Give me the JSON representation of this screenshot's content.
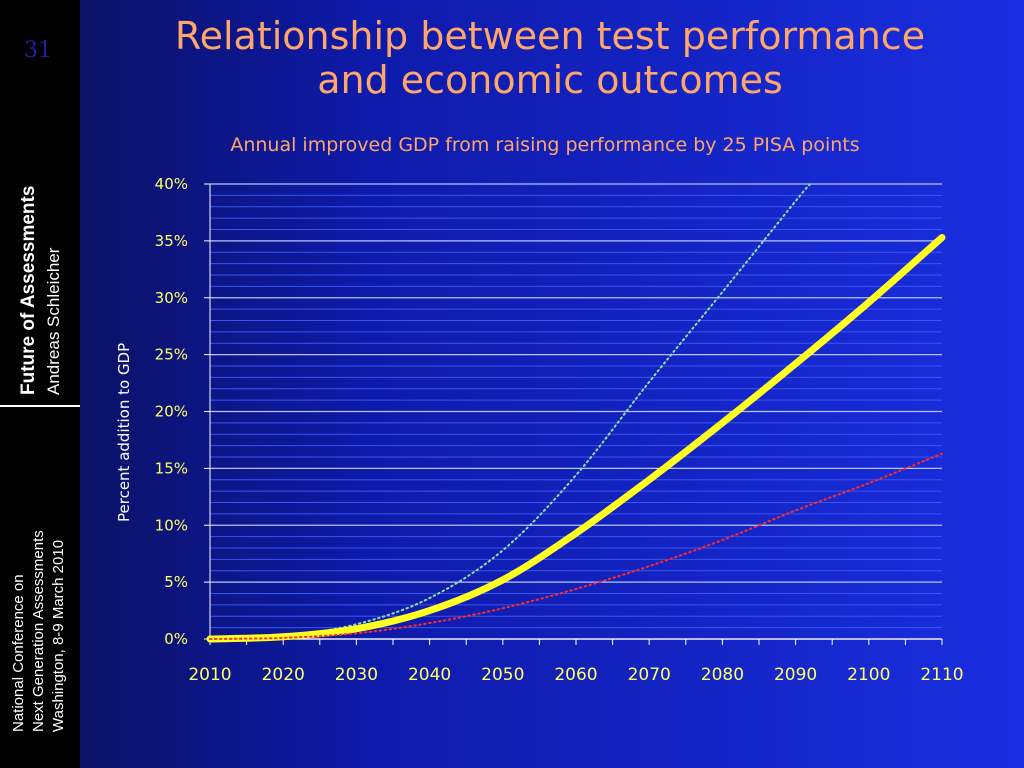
{
  "slide": {
    "number": "31",
    "title_line1": "Relationship between test performance",
    "title_line2": "and economic outcomes",
    "sidebar": {
      "heading": "Future of Assessments",
      "author": "Andreas Schleicher",
      "conference_line1": "National Conference on",
      "conference_line2": "Next Generation Assessments",
      "conference_line3": "Washington, 8-9 March 2010"
    }
  },
  "chart_data": {
    "type": "line",
    "title": "Annual improved GDP from raising performance by 25 PISA points",
    "xlabel": "",
    "ylabel": "Percent addition to GDP",
    "xlim": [
      2010,
      2110
    ],
    "ylim": [
      0,
      40
    ],
    "x_ticks": [
      "2010",
      "2020",
      "2030",
      "2040",
      "2050",
      "2060",
      "2070",
      "2080",
      "2090",
      "2100",
      "2110"
    ],
    "y_ticks": [
      "0%",
      "5%",
      "10%",
      "15%",
      "20%",
      "25%",
      "30%",
      "35%",
      "40%"
    ],
    "grid": true,
    "series": [
      {
        "style": "dotted",
        "color": "#8fe0b0",
        "x": [
          2010,
          2020,
          2030,
          2040,
          2050,
          2060,
          2070,
          2080,
          2090,
          2092
        ],
        "y": [
          0,
          0.3,
          1.3,
          3.6,
          7.8,
          14.4,
          22.6,
          30.5,
          38.5,
          40
        ]
      },
      {
        "style": "solid",
        "color": "#ffff22",
        "x": [
          2010,
          2020,
          2030,
          2040,
          2050,
          2060,
          2070,
          2080,
          2090,
          2100,
          2110
        ],
        "y": [
          0,
          0.2,
          0.9,
          2.5,
          5.2,
          9.3,
          14.0,
          19.0,
          24.2,
          29.6,
          35.3
        ]
      },
      {
        "style": "dotted",
        "color": "#ff2a2a",
        "x": [
          2010,
          2020,
          2030,
          2040,
          2050,
          2060,
          2070,
          2080,
          2090,
          2100,
          2110
        ],
        "y": [
          0,
          0.1,
          0.5,
          1.4,
          2.7,
          4.4,
          6.4,
          8.7,
          11.3,
          13.7,
          16.3
        ]
      }
    ]
  }
}
